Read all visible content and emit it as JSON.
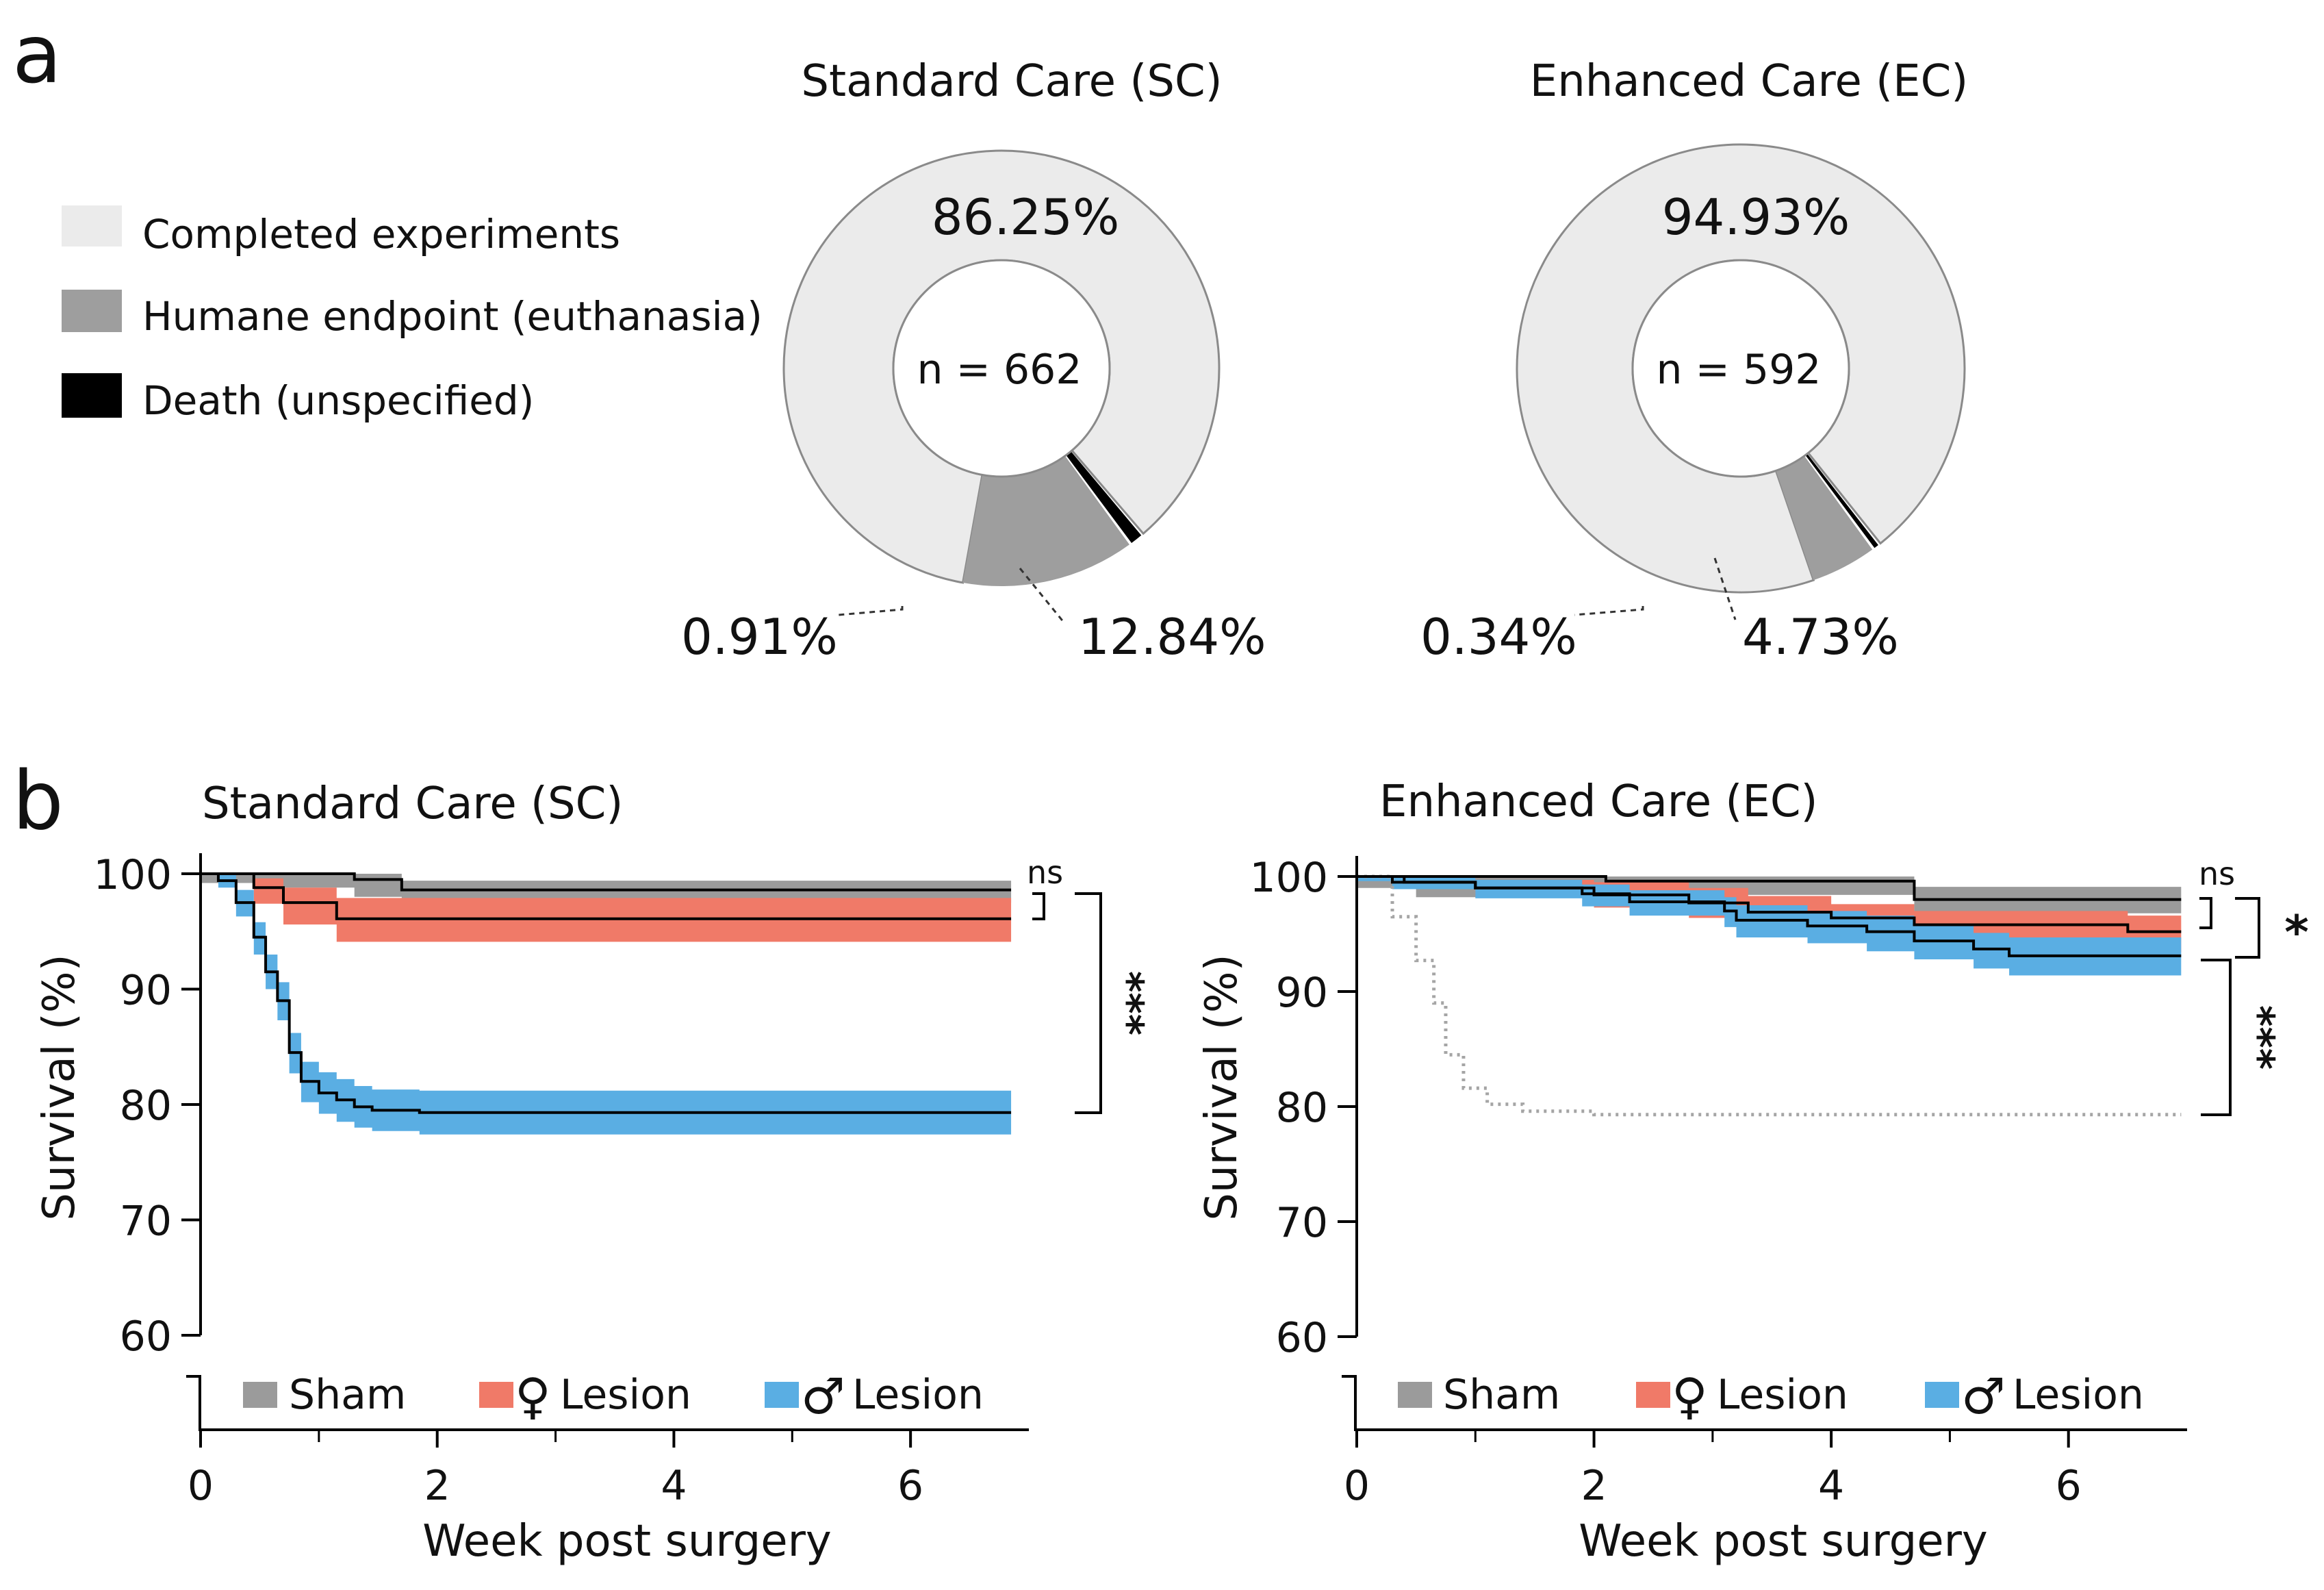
{
  "panel_labels": {
    "a": "a",
    "b": "b"
  },
  "colors": {
    "completed": "#ebebeb",
    "humane": "#9e9e9e",
    "death": "#000000",
    "sham_band": "#9b9b9b",
    "female_band": "#f07a68",
    "male_band": "#5aaee3",
    "line": "#000000"
  },
  "legend_a": [
    {
      "key": "completed",
      "label": "Completed experiments"
    },
    {
      "key": "humane",
      "label": "Humane endpoint (euthanasia)"
    },
    {
      "key": "death",
      "label": "Death (unspecified)"
    }
  ],
  "legend_b": {
    "sham": "Sham",
    "female_symbol": "♀",
    "male_symbol": "♂",
    "lesion": "Lesion"
  },
  "chart_data": [
    {
      "type": "pie",
      "variant": "donut",
      "title": "Standard Care (SC)",
      "center_label": "n = 662",
      "slices": [
        {
          "key": "completed",
          "label": "Completed experiments",
          "value": 86.25,
          "text": "86.25%"
        },
        {
          "key": "humane",
          "label": "Humane endpoint (euthanasia)",
          "value": 12.84,
          "text": "12.84%"
        },
        {
          "key": "death",
          "label": "Death (unspecified)",
          "value": 0.91,
          "text": "0.91%"
        }
      ]
    },
    {
      "type": "pie",
      "variant": "donut",
      "title": "Enhanced Care (EC)",
      "center_label": "n = 592",
      "slices": [
        {
          "key": "completed",
          "label": "Completed experiments",
          "value": 94.93,
          "text": "94.93%"
        },
        {
          "key": "humane",
          "label": "Humane endpoint (euthanasia)",
          "value": 4.73,
          "text": "4.73%"
        },
        {
          "key": "death",
          "label": "Death (unspecified)",
          "value": 0.34,
          "text": "0.34%"
        }
      ]
    },
    {
      "type": "line",
      "variant": "kaplan-meier",
      "title": "Standard Care (SC)",
      "xlabel": "Week post surgery",
      "ylabel": "Survival (%)",
      "xlim": [
        0,
        7
      ],
      "ylim": [
        60,
        100
      ],
      "xticks": [
        0,
        2,
        4,
        6
      ],
      "yticks": [
        60,
        70,
        80,
        90,
        100
      ],
      "series": [
        {
          "name": "Sham",
          "band": "sham_band",
          "steps": [
            [
              0,
              100
            ],
            [
              1.3,
              99.5
            ],
            [
              1.7,
              98.6
            ],
            [
              6.85,
              98.6
            ]
          ],
          "lower": [
            [
              0,
              99.2
            ],
            [
              0.6,
              98.8
            ],
            [
              1.3,
              98.0
            ],
            [
              1.7,
              97.5
            ],
            [
              6.85,
              97.5
            ]
          ],
          "upper": [
            [
              0,
              100
            ],
            [
              1.3,
              100
            ],
            [
              1.7,
              99.4
            ],
            [
              6.85,
              99.4
            ]
          ]
        },
        {
          "name": "♀ Lesion",
          "band": "female_band",
          "steps": [
            [
              0,
              100
            ],
            [
              0.45,
              98.8
            ],
            [
              0.7,
              97.5
            ],
            [
              1.15,
              96.1
            ],
            [
              6.85,
              96.1
            ]
          ],
          "lower": [
            [
              0,
              100
            ],
            [
              0.45,
              97.4
            ],
            [
              0.7,
              95.6
            ],
            [
              1.15,
              94.1
            ],
            [
              6.85,
              94.1
            ]
          ],
          "upper": [
            [
              0,
              100
            ],
            [
              0.45,
              99.6
            ],
            [
              0.7,
              98.8
            ],
            [
              1.15,
              97.9
            ],
            [
              6.85,
              97.9
            ]
          ]
        },
        {
          "name": "♂ Lesion",
          "band": "male_band",
          "steps": [
            [
              0,
              100
            ],
            [
              0.15,
              99.4
            ],
            [
              0.3,
              97.5
            ],
            [
              0.45,
              94.5
            ],
            [
              0.55,
              91.5
            ],
            [
              0.65,
              89.0
            ],
            [
              0.75,
              84.5
            ],
            [
              0.85,
              82.0
            ],
            [
              1.0,
              81.0
            ],
            [
              1.15,
              80.4
            ],
            [
              1.3,
              79.8
            ],
            [
              1.45,
              79.5
            ],
            [
              1.85,
              79.3
            ],
            [
              6.85,
              79.3
            ]
          ],
          "lower": [
            [
              0,
              100
            ],
            [
              0.15,
              98.8
            ],
            [
              0.3,
              96.3
            ],
            [
              0.45,
              93.0
            ],
            [
              0.55,
              90.0
            ],
            [
              0.65,
              87.3
            ],
            [
              0.75,
              82.7
            ],
            [
              0.85,
              80.2
            ],
            [
              1.0,
              79.2
            ],
            [
              1.15,
              78.5
            ],
            [
              1.3,
              78.0
            ],
            [
              1.45,
              77.7
            ],
            [
              1.85,
              77.4
            ],
            [
              6.85,
              77.4
            ]
          ],
          "upper": [
            [
              0,
              100
            ],
            [
              0.15,
              100
            ],
            [
              0.3,
              98.6
            ],
            [
              0.45,
              95.8
            ],
            [
              0.55,
              93.0
            ],
            [
              0.65,
              90.6
            ],
            [
              0.75,
              86.2
            ],
            [
              0.85,
              83.7
            ],
            [
              1.0,
              82.8
            ],
            [
              1.15,
              82.2
            ],
            [
              1.3,
              81.6
            ],
            [
              1.45,
              81.3
            ],
            [
              1.85,
              81.2
            ],
            [
              6.85,
              81.2
            ]
          ]
        }
      ],
      "significance": [
        {
          "label": "ns",
          "between": [
            "Sham",
            "♀ Lesion"
          ]
        },
        {
          "label": "***",
          "between": [
            "♀ Lesion",
            "♂ Lesion"
          ]
        }
      ]
    },
    {
      "type": "line",
      "variant": "kaplan-meier",
      "title": "Enhanced Care (EC)",
      "xlabel": "Week post surgery",
      "ylabel": "Survival (%)",
      "xlim": [
        0,
        7
      ],
      "ylim": [
        60,
        100
      ],
      "xticks": [
        0,
        2,
        4,
        6
      ],
      "yticks": [
        60,
        70,
        80,
        90,
        100
      ],
      "reference_line": {
        "style": "dotted",
        "steps": [
          [
            0,
            100
          ],
          [
            0.3,
            96.5
          ],
          [
            0.5,
            92.7
          ],
          [
            0.65,
            89.0
          ],
          [
            0.75,
            84.5
          ],
          [
            0.9,
            81.6
          ],
          [
            1.1,
            80.2
          ],
          [
            1.4,
            79.6
          ],
          [
            2.0,
            79.3
          ],
          [
            6.95,
            79.3
          ]
        ]
      },
      "series": [
        {
          "name": "Sham",
          "band": "sham_band",
          "steps": [
            [
              0,
              100
            ],
            [
              2.1,
              99.6
            ],
            [
              4.7,
              98.0
            ],
            [
              6.95,
              98.0
            ]
          ],
          "lower": [
            [
              0,
              99.0
            ],
            [
              0.5,
              98.2
            ],
            [
              2.1,
              98.4
            ],
            [
              4.7,
              96.8
            ],
            [
              6.95,
              96.8
            ]
          ],
          "upper": [
            [
              0,
              100
            ],
            [
              2.1,
              100
            ],
            [
              4.7,
              99.1
            ],
            [
              6.95,
              99.1
            ]
          ]
        },
        {
          "name": "♀ Lesion",
          "band": "female_band",
          "steps": [
            [
              0,
              100
            ],
            [
              0.4,
              99.5
            ],
            [
              1.0,
              99.0
            ],
            [
              2.0,
              98.4
            ],
            [
              2.8,
              97.7
            ],
            [
              3.3,
              96.9
            ],
            [
              4.0,
              96.4
            ],
            [
              4.7,
              95.8
            ],
            [
              6.5,
              95.2
            ],
            [
              6.95,
              95.2
            ]
          ],
          "lower": [
            [
              0,
              99.8
            ],
            [
              0.4,
              99.1
            ],
            [
              1.0,
              98.2
            ],
            [
              2.0,
              97.3
            ],
            [
              2.8,
              96.4
            ],
            [
              3.3,
              95.2
            ],
            [
              4.0,
              94.4
            ],
            [
              4.7,
              93.8
            ],
            [
              6.5,
              93.4
            ],
            [
              6.95,
              93.4
            ]
          ],
          "upper": [
            [
              0,
              100
            ],
            [
              1.0,
              99.7
            ],
            [
              2.0,
              99.5
            ],
            [
              2.8,
              99.0
            ],
            [
              3.3,
              98.3
            ],
            [
              4.0,
              97.6
            ],
            [
              4.7,
              97.0
            ],
            [
              6.5,
              96.6
            ],
            [
              6.95,
              96.6
            ]
          ]
        },
        {
          "name": "♂ Lesion",
          "band": "male_band",
          "steps": [
            [
              0,
              100
            ],
            [
              0.3,
              99.5
            ],
            [
              1.0,
              99.0
            ],
            [
              1.9,
              98.5
            ],
            [
              2.3,
              97.8
            ],
            [
              3.1,
              97.0
            ],
            [
              3.2,
              96.2
            ],
            [
              3.8,
              95.7
            ],
            [
              4.3,
              95.2
            ],
            [
              4.7,
              94.4
            ],
            [
              5.2,
              93.7
            ],
            [
              5.5,
              93.1
            ],
            [
              6.95,
              93.1
            ]
          ],
          "lower": [
            [
              0,
              99.6
            ],
            [
              0.3,
              98.9
            ],
            [
              1.0,
              98.1
            ],
            [
              1.9,
              97.4
            ],
            [
              2.3,
              96.6
            ],
            [
              3.1,
              95.6
            ],
            [
              3.2,
              94.7
            ],
            [
              3.8,
              94.2
            ],
            [
              4.3,
              93.5
            ],
            [
              4.7,
              92.8
            ],
            [
              5.2,
              92.0
            ],
            [
              5.5,
              91.4
            ],
            [
              6.95,
              91.4
            ]
          ],
          "upper": [
            [
              0,
              100
            ],
            [
              0.3,
              100
            ],
            [
              1.0,
              99.7
            ],
            [
              1.9,
              99.3
            ],
            [
              2.3,
              98.8
            ],
            [
              3.1,
              98.2
            ],
            [
              3.2,
              97.5
            ],
            [
              3.8,
              97.0
            ],
            [
              4.3,
              96.6
            ],
            [
              4.7,
              95.8
            ],
            [
              5.2,
              95.1
            ],
            [
              5.5,
              94.7
            ],
            [
              6.95,
              94.7
            ]
          ]
        }
      ],
      "significance": [
        {
          "label": "ns",
          "between": [
            "Sham",
            "♀ Lesion"
          ]
        },
        {
          "label": "*",
          "between": [
            "Sham",
            "♂ Lesion"
          ]
        },
        {
          "label": "***",
          "between": [
            "♂ Lesion",
            "reference"
          ]
        }
      ]
    }
  ]
}
